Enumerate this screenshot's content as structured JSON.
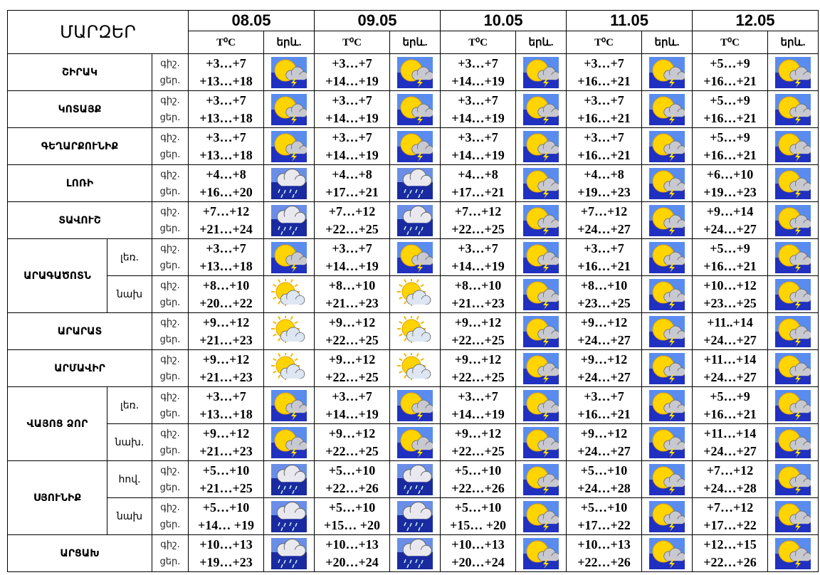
{
  "header": {
    "title": "ՄԱՐԶԵՐ",
    "dates": [
      "08.05",
      "09.05",
      "10.05",
      "11.05",
      "12.05"
    ],
    "temp_label": "T⁰C",
    "icon_label": "երև."
  },
  "regions": [
    {
      "name": "ՇԻՐԱԿ",
      "rows": [
        {
          "labels": [
            "գիշ.",
            "ցեր."
          ],
          "cells": [
            [
              "+3…+7",
              "+13…+18"
            ],
            [
              "+3…+7",
              "+14…+19"
            ],
            [
              "+3…+7",
              "+14…+19"
            ],
            [
              "+3…+7",
              "+16…+21"
            ],
            [
              "+5…+9",
              "+16…+21"
            ]
          ]
        }
      ]
    },
    {
      "name": "ԿՈՏԱՅՔ",
      "rows": [
        {
          "labels": [
            "գիշ.",
            "ցեր."
          ],
          "cells": [
            [
              "+3…+7",
              "+13…+18"
            ],
            [
              "+3…+7",
              "+14…+19"
            ],
            [
              "+3…+7",
              "+14…+19"
            ],
            [
              "+3…+7",
              "+16…+21"
            ],
            [
              "+5…+9",
              "+16…+21"
            ]
          ]
        }
      ]
    },
    {
      "name": "ԳԵՂԱՐՔՈՒՆԻՔ",
      "rows": [
        {
          "labels": [
            "գիշ.",
            "ցեր."
          ],
          "cells": [
            [
              "+3…+7",
              "+13…+18"
            ],
            [
              "+3…+7",
              "+14…+19"
            ],
            [
              "+3…+7",
              "+14…+19"
            ],
            [
              "+3…+7",
              "+16…+21"
            ],
            [
              "+5…+9",
              "+16…+21"
            ]
          ]
        }
      ]
    },
    {
      "name": "ԼՈՌԻ",
      "rows": [
        {
          "labels": [
            "գիշ.",
            "ցեր."
          ],
          "cells": [
            [
              "+4…+8",
              "+16…+20"
            ],
            [
              "+4…+8",
              "+17…+21"
            ],
            [
              "+4…+8",
              "+17…+21"
            ],
            [
              "+4…+8",
              "+19…+23"
            ],
            [
              "+6…+10",
              "+19…+23"
            ]
          ]
        }
      ]
    },
    {
      "name": "ՏԱՎՈՒՇ",
      "rows": [
        {
          "labels": [
            "գիշ.",
            "ցեր."
          ],
          "cells": [
            [
              "+7…+12",
              "+21…+24"
            ],
            [
              "+7…+12",
              "+22…+25"
            ],
            [
              "+7…+12",
              "+22…+25"
            ],
            [
              "+7…+12",
              "+24…+27"
            ],
            [
              "+9…+14",
              "+24…+27"
            ]
          ]
        }
      ]
    },
    {
      "name": "ԱՐԱԳԱԾՈՏՆ",
      "rows": [
        {
          "sub": "լեռ.",
          "labels": [
            "գիշ.",
            "ցեր."
          ],
          "cells": [
            [
              "+3…+7",
              "+13…+18"
            ],
            [
              "+3…+7",
              "+14…+19"
            ],
            [
              "+3…+7",
              "+14…+19"
            ],
            [
              "+3…+7",
              "+16…+21"
            ],
            [
              "+5…+9",
              "+16…+21"
            ]
          ]
        },
        {
          "sub": "նախ",
          "labels": [
            "գիշ.",
            "ցեր."
          ],
          "cells": [
            [
              "+8…+10",
              "+20…+22"
            ],
            [
              "+8…+10",
              "+21…+23"
            ],
            [
              "+8…+10",
              "+21…+23"
            ],
            [
              "+8…+10",
              "+23…+25"
            ],
            [
              "+10…+12",
              "+23…+25"
            ]
          ]
        }
      ]
    },
    {
      "name": "ԱՐԱՐԱՏ",
      "rows": [
        {
          "labels": [
            "գիշ.",
            "ցեր."
          ],
          "cells": [
            [
              "+9…+12",
              "+21…+23"
            ],
            [
              "+9…+12",
              "+22…+25"
            ],
            [
              "+9…+12",
              "+22…+25"
            ],
            [
              "+9…+12",
              "+24…+27"
            ],
            [
              "+11..+14",
              "+24…+27"
            ]
          ]
        }
      ]
    },
    {
      "name": "ԱՐՄԱՎԻՐ",
      "rows": [
        {
          "labels": [
            "գիշ.",
            "ցեր."
          ],
          "cells": [
            [
              "+9…+12",
              "+21…+23"
            ],
            [
              "+9…+12",
              "+22…+25"
            ],
            [
              "+9…+12",
              "+22…+25"
            ],
            [
              "+9…+12",
              "+24…+27"
            ],
            [
              "+11…+14",
              "+24…+27"
            ]
          ]
        }
      ]
    },
    {
      "name": "ՎԱՅՈՑ ՁՈՐ",
      "rows": [
        {
          "sub": "լեռ.",
          "labels": [
            "գիշ.",
            "ցեր."
          ],
          "cells": [
            [
              "+3…+7",
              "+13…+18"
            ],
            [
              "+3…+7",
              "+14…+19"
            ],
            [
              "+3…+7",
              "+14…+19"
            ],
            [
              "+3…+7",
              "+16…+21"
            ],
            [
              "+5…+9",
              "+16…+21"
            ]
          ]
        },
        {
          "sub": "նախ.",
          "labels": [
            "գիշ.",
            "ցեր."
          ],
          "cells": [
            [
              "+9…+12",
              "+21…+23"
            ],
            [
              "+9…+12",
              "+22…+25"
            ],
            [
              "+9…+12",
              "+22…+25"
            ],
            [
              "+9…+12",
              "+24…+27"
            ],
            [
              "+11…+14",
              "+24…+27"
            ]
          ]
        }
      ]
    },
    {
      "name": "ՍՅՈՒՆԻՔ",
      "rows": [
        {
          "sub": "հով.",
          "labels": [
            "գիշ.",
            "ցեր."
          ],
          "cells": [
            [
              "+5…+10",
              "+21…+25"
            ],
            [
              "+5…+10",
              "+22…+26"
            ],
            [
              "+5…+10",
              "+22…+26"
            ],
            [
              "+5…+10",
              "+24…+28"
            ],
            [
              "+7…+12",
              "+24…+28"
            ]
          ]
        },
        {
          "sub": "նախ",
          "labels": [
            "գիշ.",
            "ցեր."
          ],
          "cells": [
            [
              "+5…+10",
              "+14… +19"
            ],
            [
              "+5…+10",
              "+15… +20"
            ],
            [
              "+5…+10",
              "+15… +20"
            ],
            [
              "+5…+10",
              "+17…+22"
            ],
            [
              "+7…+12",
              "+17…+22"
            ]
          ]
        }
      ]
    },
    {
      "name": "ԱՐՑԱԽ",
      "rows": [
        {
          "labels": [
            "գիշ.",
            "ցեր."
          ],
          "cells": [
            [
              "+10…+13",
              "+19…+23"
            ],
            [
              "+10…+13",
              "+20…+24"
            ],
            [
              "+10…+13",
              "+20…+24"
            ],
            [
              "+10…+13",
              "+22…+26"
            ],
            [
              "+12…+15",
              "+22…+26"
            ]
          ]
        }
      ]
    }
  ]
}
